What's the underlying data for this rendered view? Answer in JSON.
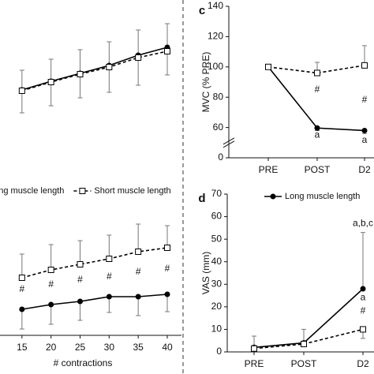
{
  "chart_data": [
    {
      "type": "line",
      "xlim": [
        10,
        40
      ],
      "ylim": [
        0,
        210
      ],
      "x": [
        15,
        20,
        25,
        30,
        35,
        40
      ],
      "series": [
        {
          "name": "Long muscle length",
          "color": "#000000",
          "marker": "circle",
          "dash": false,
          "error_dir": "up",
          "values": [
            96,
            107,
            117,
            127,
            140,
            150
          ],
          "errors": [
            25,
            28,
            30,
            30,
            32,
            30
          ]
        },
        {
          "name": "Short muscle length",
          "color": "#000000",
          "marker": "square",
          "dash": true,
          "error_dir": "down",
          "values": [
            95,
            106,
            116,
            125,
            137,
            145
          ],
          "errors": [
            28,
            30,
            30,
            32,
            35,
            30
          ]
        }
      ]
    },
    {
      "type": "line",
      "xlim": [
        10,
        40
      ],
      "ylim": [
        0,
        177
      ],
      "x_label": "# contractions",
      "x": [
        15,
        20,
        25,
        30,
        35,
        40
      ],
      "xticks": [
        15,
        20,
        25,
        30,
        35,
        40
      ],
      "legend": "top",
      "series": [
        {
          "name": "Long muscle length",
          "color": "#000000",
          "marker": "circle",
          "dash": false,
          "error_dir": "down",
          "values": [
            33,
            39,
            43,
            49,
            49,
            52
          ],
          "errors": [
            25,
            25,
            24,
            20,
            24,
            22
          ]
        },
        {
          "name": "Short muscle length",
          "color": "#000000",
          "marker": "square",
          "dash": true,
          "error_dir": "up",
          "values": [
            73,
            83,
            90,
            97,
            106,
            111
          ],
          "errors": [
            30,
            32,
            30,
            30,
            35,
            28
          ]
        }
      ],
      "annotations": [
        {
          "text": "#",
          "x": 15,
          "value": 58
        },
        {
          "text": "#",
          "x": 20,
          "value": 64
        },
        {
          "text": "#",
          "x": 25,
          "value": 70
        },
        {
          "text": "#",
          "x": 30,
          "value": 74
        },
        {
          "text": "#",
          "x": 35,
          "value": 80
        },
        {
          "text": "#",
          "x": 40,
          "value": 84
        }
      ]
    },
    {
      "type": "line",
      "panel_label": "c",
      "y_label": "MVC (% PRE)",
      "categories": [
        "PRE",
        "POST",
        "D2"
      ],
      "ylim": [
        0,
        140
      ],
      "axis_break": [
        0,
        60
      ],
      "yticks": [
        0,
        60,
        80,
        100,
        120,
        140
      ],
      "series": [
        {
          "name": "Long muscle length",
          "color": "#000000",
          "marker": "circle",
          "dash": false,
          "error_dir": "down",
          "values": [
            100,
            59,
            54
          ],
          "errors": [
            0,
            5,
            6
          ]
        },
        {
          "name": "Short muscle length",
          "color": "#000000",
          "marker": "square",
          "dash": true,
          "error_dir": "up",
          "values": [
            100,
            96,
            101
          ],
          "errors": [
            0,
            7,
            13
          ]
        }
      ],
      "annotations": [
        {
          "text": "#",
          "category": 1,
          "value": 85
        },
        {
          "text": "#",
          "category": 2,
          "value": 78
        },
        {
          "text": "a",
          "category": 1,
          "value": 45
        },
        {
          "text": "a",
          "category": 2,
          "value": 35
        }
      ]
    },
    {
      "type": "line",
      "panel_label": "d",
      "y_label": "VAS (mm)",
      "categories": [
        "PRE",
        "POST",
        "D2"
      ],
      "ylim": [
        0,
        70
      ],
      "yticks": [
        0,
        10,
        20,
        30,
        40,
        50,
        60,
        70
      ],
      "legend": "top",
      "series": [
        {
          "name": "Long muscle length",
          "color": "#000000",
          "marker": "circle",
          "dash": false,
          "error_dir": "up",
          "values": [
            2,
            4,
            28
          ],
          "errors": [
            5,
            6,
            25
          ]
        },
        {
          "color": "#000000",
          "marker": "square",
          "dash": true,
          "error_dir": "down",
          "values": [
            1.5,
            3.5,
            10
          ],
          "errors": [
            1,
            1,
            4
          ]
        }
      ],
      "annotations": [
        {
          "text": "a,b,c",
          "category": 2,
          "value": 57
        },
        {
          "text": "a",
          "category": 2,
          "value": 24
        },
        {
          "text": "#",
          "category": 2,
          "value": 18
        }
      ]
    }
  ]
}
